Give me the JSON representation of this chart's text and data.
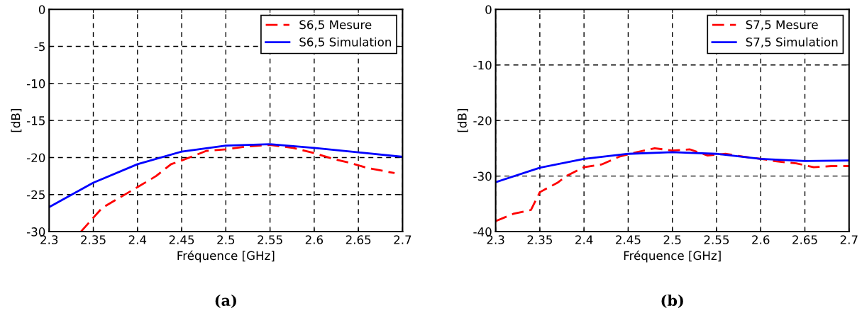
{
  "chart_data": [
    {
      "type": "line",
      "title": "(a)",
      "xlabel": "Fréquence [GHz]",
      "ylabel": "[dB]",
      "xlim": [
        2.3,
        2.7
      ],
      "xticks": [
        2.3,
        2.35,
        2.4,
        2.45,
        2.5,
        2.55,
        2.6,
        2.65,
        2.7
      ],
      "ylim": [
        -30,
        0
      ],
      "yticks": [
        -30,
        -25,
        -20,
        -15,
        -10,
        -5,
        0
      ],
      "grid": true,
      "legend": "top right",
      "series": [
        {
          "name": "S6,5 Mesure",
          "color": "#ff0000",
          "line_style": "dashed",
          "x": [
            2.336,
            2.36,
            2.4,
            2.421,
            2.438,
            2.45,
            2.478,
            2.5,
            2.524,
            2.55,
            2.576,
            2.6,
            2.622,
            2.64,
            2.66,
            2.691
          ],
          "values": [
            -30,
            -26.8,
            -24.0,
            -22.5,
            -20.9,
            -20.4,
            -19.1,
            -18.9,
            -18.5,
            -18.3,
            -18.7,
            -19.4,
            -20.2,
            -20.7,
            -21.4,
            -22.1
          ]
        },
        {
          "name": "S6,5 Simulation",
          "color": "#0000ff",
          "line_style": "solid",
          "x": [
            2.3,
            2.35,
            2.4,
            2.45,
            2.5,
            2.55,
            2.6,
            2.65,
            2.7
          ],
          "values": [
            -26.7,
            -23.4,
            -20.9,
            -19.2,
            -18.4,
            -18.2,
            -18.7,
            -19.3,
            -19.9
          ]
        }
      ]
    },
    {
      "type": "line",
      "title": "(b)",
      "xlabel": "Fréquence [GHz]",
      "ylabel": "[dB]",
      "xlim": [
        2.3,
        2.7
      ],
      "xticks": [
        2.3,
        2.35,
        2.4,
        2.45,
        2.5,
        2.55,
        2.6,
        2.65,
        2.7
      ],
      "ylim": [
        -40,
        0
      ],
      "yticks": [
        -40,
        -30,
        -20,
        -10,
        0
      ],
      "grid": true,
      "legend": "top right",
      "series": [
        {
          "name": "S7,5 Mesure",
          "color": "#ff0000",
          "line_style": "dashed",
          "x": [
            2.3,
            2.32,
            2.34,
            2.35,
            2.37,
            2.38,
            2.4,
            2.42,
            2.44,
            2.46,
            2.48,
            2.5,
            2.52,
            2.54,
            2.56,
            2.58,
            2.6,
            2.62,
            2.64,
            2.66,
            2.68,
            2.7
          ],
          "values": [
            -38.1,
            -36.8,
            -36.1,
            -32.9,
            -31.2,
            -30.0,
            -28.4,
            -27.9,
            -26.5,
            -25.7,
            -25.0,
            -25.4,
            -25.2,
            -26.3,
            -26.0,
            -26.5,
            -26.9,
            -27.4,
            -27.7,
            -28.4,
            -28.2,
            -28.2
          ]
        },
        {
          "name": "S7,5 Simulation",
          "color": "#0000ff",
          "line_style": "solid",
          "x": [
            2.3,
            2.35,
            2.4,
            2.45,
            2.5,
            2.55,
            2.6,
            2.65,
            2.7
          ],
          "values": [
            -31.1,
            -28.5,
            -26.9,
            -26.0,
            -25.7,
            -26.0,
            -26.9,
            -27.3,
            -27.2
          ]
        }
      ]
    }
  ]
}
